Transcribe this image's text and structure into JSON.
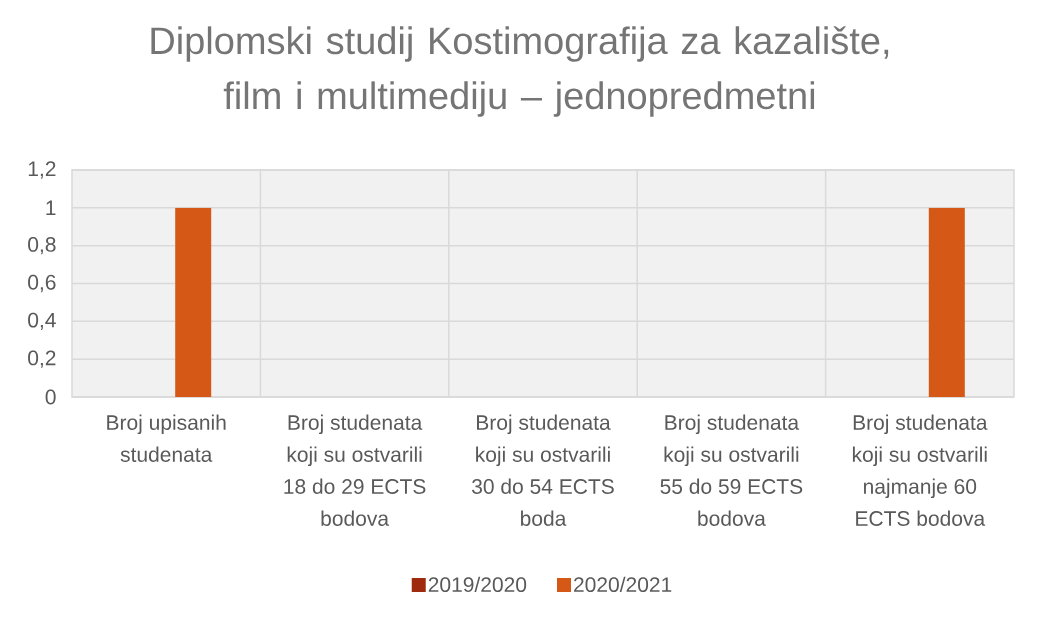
{
  "chart_data": {
    "type": "bar",
    "title": "Diplomski studij Kostimografija za kazalište, film i multimediju – jednopredmetni",
    "categories": [
      "Broj upisanih studenata",
      "Broj studenata koji su ostvarili 18 do 29 ECTS bodova",
      "Broj studenata koji su ostvarili 30 do 54 ECTS boda",
      "Broj studenata koji su ostvarili 55 do 59 ECTS bodova",
      "Broj studenata koji su ostvarili najmanje 60 ECTS bodova"
    ],
    "series": [
      {
        "name": "2019/2020",
        "color": "#9e2b0e",
        "values": [
          0,
          0,
          0,
          0,
          0
        ]
      },
      {
        "name": "2020/2021",
        "color": "#d55816",
        "values": [
          1,
          0,
          0,
          0,
          1
        ]
      }
    ],
    "ylim": [
      0,
      1.2
    ],
    "yticks": [
      0,
      {
        "value": 0.2,
        "label": "0,2"
      },
      {
        "value": 0.4,
        "label": "0,4"
      },
      {
        "value": 0.6,
        "label": "0,6"
      },
      {
        "value": 0.8,
        "label": "0,8"
      },
      1,
      {
        "value": 1.2,
        "label": "1,2"
      }
    ],
    "grid": true,
    "legend": "bottom"
  }
}
